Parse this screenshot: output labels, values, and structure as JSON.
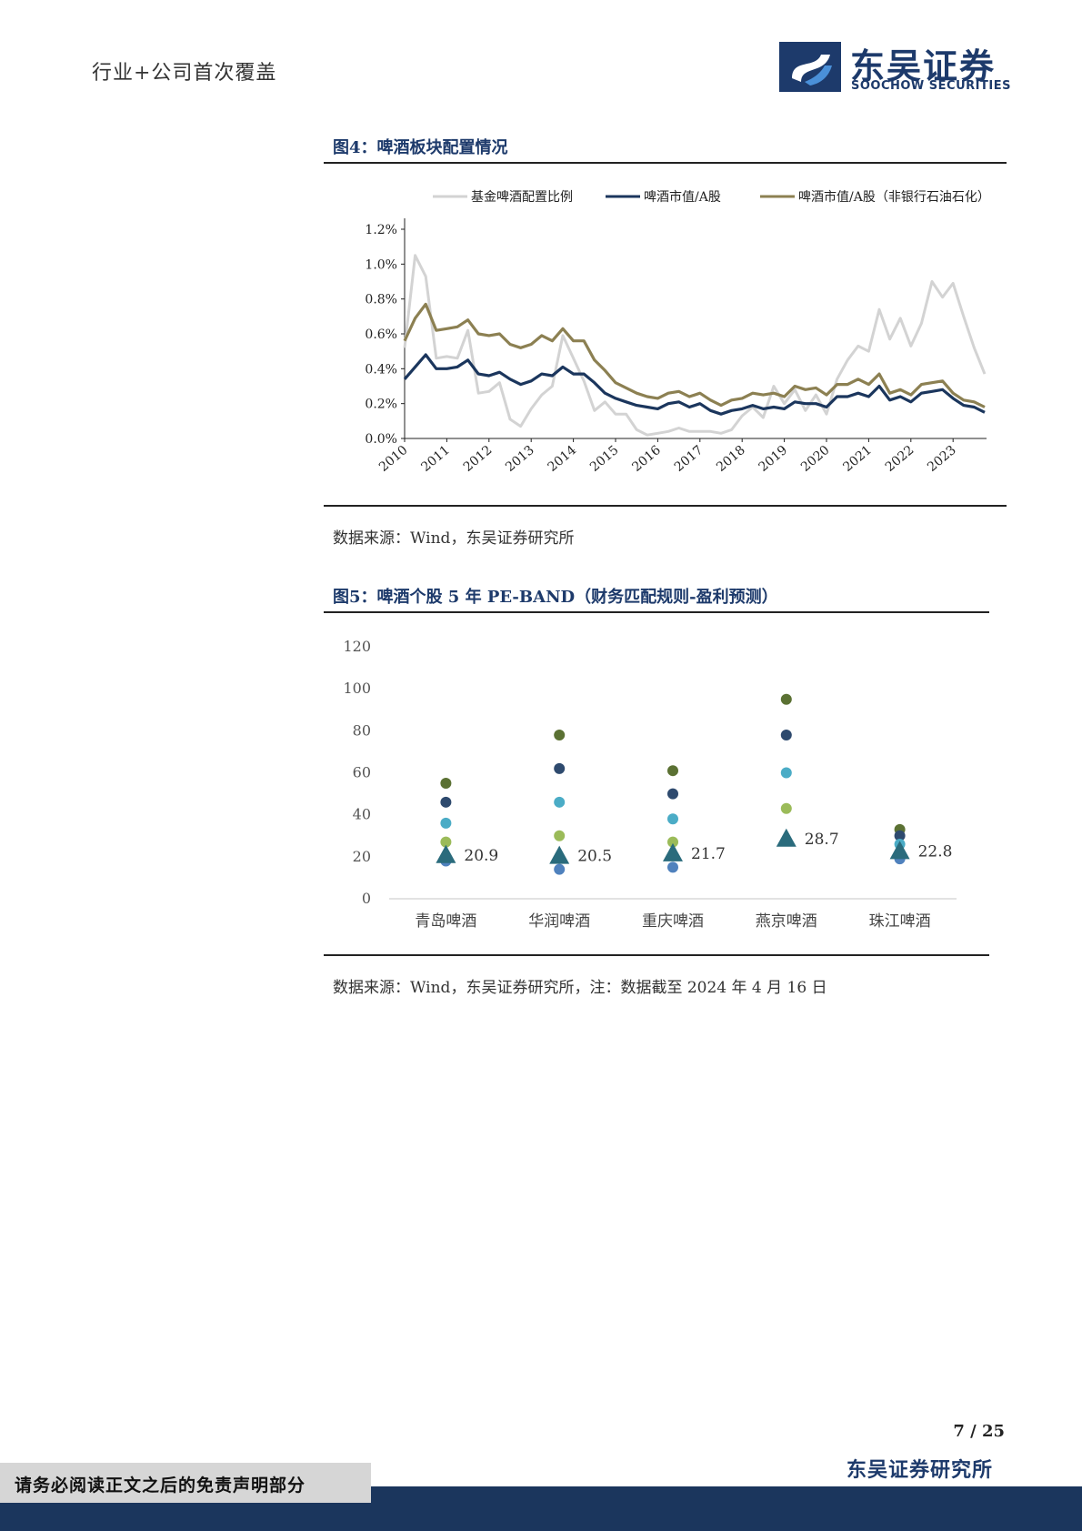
{
  "header": {
    "section_title": "行业+公司首次覆盖",
    "logo_cn": "东吴证券",
    "logo_en": "SOOCHOW SECURITIES"
  },
  "figure4": {
    "title": "图4：啤酒板块配置情况",
    "source": "数据来源：Wind，东吴证券研究所"
  },
  "figure5": {
    "title": "图5：啤酒个股 5 年 PE-BAND（财务匹配规则-盈利预测）",
    "source": "数据来源：Wind，东吴证券研究所，注：数据截至 2024 年 4 月 16 日"
  },
  "footer": {
    "page_number": "7 / 25",
    "org": "东吴证券研究所",
    "disclaimer": "请务必阅读正文之后的免责声明部分"
  },
  "colors": {
    "navy": "#1b365d",
    "gray_line": "#d3d3d3",
    "olive_line": "#8c8052",
    "dot_dark_green": "#5b7133",
    "dot_navy": "#2e4a6e",
    "dot_cyan": "#4bacc6",
    "dot_light_green": "#9bbb59",
    "dot_blue": "#4f81bd",
    "triangle": "#2a6b7c"
  },
  "chart_data": [
    {
      "type": "line",
      "title": "图4：啤酒板块配置情况",
      "x_tick_labels": [
        "2010",
        "2011",
        "2012",
        "2013",
        "2014",
        "2015",
        "2016",
        "2017",
        "2018",
        "2019",
        "2020",
        "2021",
        "2022",
        "2023"
      ],
      "y_tick_labels": [
        "0.0%",
        "0.2%",
        "0.4%",
        "0.6%",
        "0.8%",
        "1.0%",
        "1.2%"
      ],
      "ylim": [
        0,
        1.2
      ],
      "x_start": 2010.0,
      "x_step": 0.25,
      "series": [
        {
          "name": "基金啤酒配置比例",
          "color": "#d3d3d3",
          "values": [
            0.52,
            1.05,
            0.93,
            0.46,
            0.47,
            0.46,
            0.62,
            0.26,
            0.27,
            0.32,
            0.11,
            0.07,
            0.17,
            0.25,
            0.3,
            0.59,
            0.46,
            0.33,
            0.16,
            0.21,
            0.14,
            0.14,
            0.05,
            0.02,
            0.03,
            0.04,
            0.06,
            0.04,
            0.04,
            0.04,
            0.03,
            0.05,
            0.13,
            0.18,
            0.12,
            0.3,
            0.2,
            0.28,
            0.16,
            0.25,
            0.14,
            0.34,
            0.45,
            0.53,
            0.5,
            0.74,
            0.57,
            0.69,
            0.53,
            0.66,
            0.9,
            0.81,
            0.89,
            0.7,
            0.52,
            0.37
          ]
        },
        {
          "name": "啤酒市值/A股",
          "color": "#1b365d",
          "values": [
            0.34,
            0.41,
            0.48,
            0.4,
            0.4,
            0.41,
            0.45,
            0.37,
            0.36,
            0.38,
            0.34,
            0.31,
            0.33,
            0.37,
            0.36,
            0.41,
            0.37,
            0.37,
            0.32,
            0.26,
            0.23,
            0.21,
            0.19,
            0.18,
            0.17,
            0.2,
            0.21,
            0.18,
            0.2,
            0.16,
            0.14,
            0.16,
            0.17,
            0.19,
            0.17,
            0.18,
            0.17,
            0.21,
            0.2,
            0.2,
            0.18,
            0.24,
            0.24,
            0.26,
            0.24,
            0.3,
            0.22,
            0.24,
            0.21,
            0.26,
            0.27,
            0.28,
            0.23,
            0.19,
            0.18,
            0.15
          ]
        },
        {
          "name": "啤酒市值/A股（非银行石油石化）",
          "color": "#8c8052",
          "values": [
            0.56,
            0.69,
            0.77,
            0.62,
            0.63,
            0.64,
            0.68,
            0.6,
            0.59,
            0.6,
            0.54,
            0.52,
            0.54,
            0.59,
            0.56,
            0.63,
            0.56,
            0.56,
            0.45,
            0.39,
            0.32,
            0.29,
            0.26,
            0.24,
            0.23,
            0.26,
            0.27,
            0.24,
            0.26,
            0.22,
            0.19,
            0.22,
            0.23,
            0.26,
            0.25,
            0.26,
            0.24,
            0.3,
            0.28,
            0.29,
            0.25,
            0.31,
            0.31,
            0.34,
            0.31,
            0.37,
            0.26,
            0.28,
            0.25,
            0.31,
            0.32,
            0.33,
            0.26,
            0.22,
            0.21,
            0.18
          ]
        }
      ]
    },
    {
      "type": "scatter",
      "title": "图5：啤酒个股 5 年 PE-BAND（财务匹配规则-盈利预测）",
      "categories": [
        "青岛啤酒",
        "华润啤酒",
        "重庆啤酒",
        "燕京啤酒",
        "珠江啤酒"
      ],
      "y_tick_labels": [
        "0",
        "20",
        "40",
        "60",
        "80",
        "100",
        "120"
      ],
      "ylim": [
        0,
        120
      ],
      "band_series": [
        {
          "name": "band-1",
          "color": "#5b7133",
          "values": [
            55,
            78,
            61,
            95,
            33
          ]
        },
        {
          "name": "band-2",
          "color": "#2e4a6e",
          "values": [
            46,
            62,
            50,
            78,
            30
          ]
        },
        {
          "name": "band-3",
          "color": "#4bacc6",
          "values": [
            36,
            46,
            38,
            60,
            26
          ]
        },
        {
          "name": "band-4",
          "color": "#9bbb59",
          "values": [
            27,
            30,
            27,
            43,
            21
          ]
        },
        {
          "name": "band-5",
          "color": "#4f81bd",
          "values": [
            18,
            14,
            15,
            null,
            19
          ]
        }
      ],
      "current_pe": {
        "color": "#2a6b7c",
        "values": [
          20.9,
          20.5,
          21.7,
          28.7,
          22.8
        ],
        "labels": [
          "20.9",
          "20.5",
          "21.7",
          "28.7",
          "22.8"
        ]
      }
    }
  ]
}
